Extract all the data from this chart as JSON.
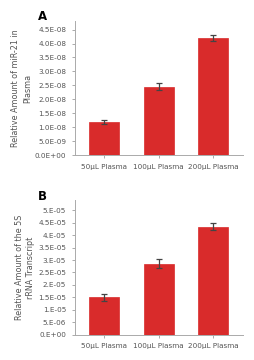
{
  "panel_A": {
    "label": "A",
    "categories": [
      "50μL Plasma",
      "100μL Plasma",
      "200μL Plasma"
    ],
    "values": [
      1.2e-08,
      2.45e-08,
      4.2e-08
    ],
    "errors": [
      7e-10,
      1.3e-09,
      1e-09
    ],
    "ylabel": "Relative Amount of miR-21 in\nPlasma",
    "yticks": [
      0.0,
      5e-09,
      1e-08,
      1.5e-08,
      2e-08,
      2.5e-08,
      3e-08,
      3.5e-08,
      4e-08,
      4.5e-08
    ],
    "yticklabels": [
      "0.0E+00",
      "5.0E-09",
      "1.0E-08",
      "1.5E-08",
      "2.0E-08",
      "2.5E-08",
      "3.0E-08",
      "3.5E-08",
      "4.0E-08",
      "4.5E-08"
    ],
    "ylim": [
      0,
      4.8e-08
    ]
  },
  "panel_B": {
    "label": "B",
    "categories": [
      "50μL Plasma",
      "100μL Plasma",
      "200μL Plasma"
    ],
    "values": [
      1.5e-05,
      2.85e-05,
      4.35e-05
    ],
    "errors": [
      1.5e-06,
      1.8e-06,
      1.5e-06
    ],
    "ylabel": "Relative Amount of the 5S\nrRNA Transcript",
    "yticks": [
      0.0,
      5e-06,
      1e-05,
      1.5e-05,
      2e-05,
      2.5e-05,
      3e-05,
      3.5e-05,
      4e-05,
      4.5e-05,
      5e-05
    ],
    "yticklabels": [
      "0.E+00",
      "5.E-06",
      "1.E-05",
      "1.5E-05",
      "2.E-05",
      "2.5E-05",
      "3.E-05",
      "3.5E-05",
      "4.E-05",
      "4.5E-05",
      "5.E-05"
    ],
    "ylim": [
      0,
      5.4e-05
    ]
  },
  "bar_color": "#d92b2b",
  "error_color": "#444444",
  "bg_color": "#ffffff",
  "tick_color": "#555555",
  "spine_color": "#aaaaaa",
  "label_fontsize": 8.5,
  "tick_fontsize": 5.2,
  "ylabel_fontsize": 5.8,
  "bar_width": 0.55
}
